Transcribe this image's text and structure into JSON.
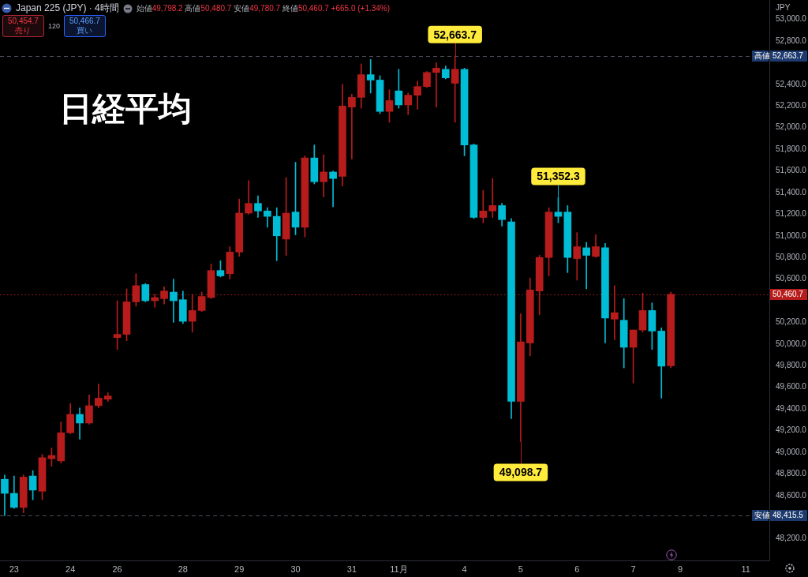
{
  "chart_data": {
    "type": "candlestick",
    "title": "日経平均",
    "subtitle": "Japan 225 (JPY) · 4時間",
    "ylabel": "JPY",
    "categories": [
      null,
      "23",
      null,
      null,
      null,
      null,
      null,
      "24",
      null,
      null,
      null,
      null,
      "26",
      null,
      null,
      null,
      null,
      null,
      null,
      "28",
      null,
      null,
      null,
      null,
      null,
      "29",
      null,
      null,
      null,
      null,
      null,
      "30",
      null,
      null,
      null,
      null,
      null,
      "31",
      null,
      null,
      null,
      null,
      "11月",
      null,
      null,
      null,
      null,
      null,
      null,
      "4",
      null,
      null,
      null,
      null,
      null,
      "5",
      null,
      null,
      null,
      null,
      null,
      "6",
      null,
      null,
      null,
      null,
      null,
      "7",
      null,
      null,
      null,
      null,
      "9",
      null,
      null,
      null,
      null,
      null,
      null,
      "11",
      null,
      null
    ],
    "ohlc": [
      [
        48750,
        48790,
        48415.5,
        48620
      ],
      [
        48620,
        48780,
        48480,
        48490
      ],
      [
        48490,
        48790,
        48440,
        48770
      ],
      [
        48780,
        48830,
        48560,
        48650
      ],
      [
        48640,
        48980,
        48560,
        48950
      ],
      [
        48940,
        49040,
        48870,
        48970
      ],
      [
        48920,
        49280,
        48900,
        49180
      ],
      [
        49180,
        49450,
        49170,
        49350
      ],
      [
        49350,
        49410,
        49120,
        49270
      ],
      [
        49270,
        49530,
        49260,
        49430
      ],
      [
        49430,
        49630,
        49410,
        49500
      ],
      [
        49490,
        49550,
        49470,
        49520
      ],
      [
        50060,
        50400,
        49950,
        50090
      ],
      [
        50090,
        50510,
        50030,
        50390
      ],
      [
        50390,
        50650,
        50350,
        50540
      ],
      [
        50550,
        50560,
        50390,
        50400
      ],
      [
        50400,
        50460,
        50340,
        50430
      ],
      [
        50420,
        50530,
        50370,
        50490
      ],
      [
        50480,
        50600,
        50200,
        50400
      ],
      [
        50410,
        50490,
        50190,
        50210
      ],
      [
        50210,
        50460,
        50110,
        50310
      ],
      [
        50310,
        50480,
        50300,
        50440
      ],
      [
        50430,
        50740,
        50420,
        50680
      ],
      [
        50680,
        50770,
        50620,
        50630
      ],
      [
        50650,
        50900,
        50600,
        50850
      ],
      [
        50850,
        51340,
        50810,
        51210
      ],
      [
        51210,
        51510,
        51200,
        51300
      ],
      [
        51300,
        51370,
        51170,
        51230
      ],
      [
        51230,
        51260,
        51080,
        51180
      ],
      [
        51180,
        51260,
        50770,
        51000
      ],
      [
        50970,
        51540,
        50820,
        51210
      ],
      [
        51220,
        51680,
        51010,
        51080
      ],
      [
        51080,
        51740,
        50990,
        51720
      ],
      [
        51720,
        51840,
        51480,
        51500
      ],
      [
        51500,
        51750,
        51360,
        51590
      ],
      [
        51590,
        51600,
        51270,
        51530
      ],
      [
        51550,
        52400,
        51460,
        52200
      ],
      [
        52190,
        52310,
        51710,
        52280
      ],
      [
        52280,
        52590,
        52180,
        52490
      ],
      [
        52490,
        52630,
        52320,
        52440
      ],
      [
        52440,
        52480,
        52130,
        52150
      ],
      [
        52150,
        52350,
        52050,
        52250
      ],
      [
        52340,
        52540,
        52180,
        52210
      ],
      [
        52210,
        52320,
        52120,
        52300
      ],
      [
        52300,
        52430,
        52170,
        52380
      ],
      [
        52380,
        52520,
        52370,
        52510
      ],
      [
        52510,
        52600,
        52190,
        52550
      ],
      [
        52540,
        52570,
        52450,
        52460
      ],
      [
        52410,
        52663.7,
        52050,
        52540
      ],
      [
        52540,
        52550,
        51740,
        51840
      ],
      [
        51840,
        51850,
        51160,
        51170
      ],
      [
        51170,
        51420,
        51120,
        51230
      ],
      [
        51230,
        51530,
        51170,
        51280
      ],
      [
        51280,
        51300,
        51090,
        51150
      ],
      [
        51130,
        51160,
        49310,
        49470
      ],
      [
        49470,
        50280,
        49098.7,
        50020
      ],
      [
        50010,
        50610,
        49890,
        50500
      ],
      [
        50490,
        50820,
        50270,
        50800
      ],
      [
        50800,
        51260,
        50630,
        51220
      ],
      [
        51220,
        51352.3,
        51120,
        51180
      ],
      [
        51220,
        51280,
        50660,
        50800
      ],
      [
        50790,
        51030,
        50590,
        50900
      ],
      [
        50890,
        50940,
        50510,
        50820
      ],
      [
        50810,
        51010,
        50800,
        50900
      ],
      [
        50890,
        50930,
        50010,
        50240
      ],
      [
        50230,
        50540,
        50040,
        50290
      ],
      [
        50220,
        50420,
        49780,
        49970
      ],
      [
        49970,
        50130,
        49640,
        50130
      ],
      [
        50130,
        50470,
        50110,
        50310
      ],
      [
        50310,
        50380,
        49950,
        50120
      ],
      [
        50120,
        50150,
        49500,
        49795.7
      ],
      [
        49798.2,
        50480.7,
        49780.7,
        50460.7
      ],
      null,
      null,
      null,
      null,
      null,
      null,
      null,
      null,
      null,
      null
    ],
    "colors": [
      "#00bcd4",
      "#00bcd4",
      "#b71c1c",
      "#00bcd4",
      "#b71c1c",
      "#b71c1c",
      "#b71c1c",
      "#b71c1c",
      "#00bcd4",
      "#b71c1c",
      "#b71c1c",
      "#b71c1c",
      "#b71c1c",
      "#b71c1c",
      "#b71c1c",
      "#00bcd4",
      "#b71c1c",
      "#b71c1c",
      "#00bcd4",
      "#00bcd4",
      "#b71c1c",
      "#b71c1c",
      "#b71c1c",
      "#00bcd4",
      "#b71c1c",
      "#b71c1c",
      "#b71c1c",
      "#00bcd4",
      "#00bcd4",
      "#00bcd4",
      "#b71c1c",
      "#00bcd4",
      "#b71c1c",
      "#00bcd4",
      "#b71c1c",
      "#00bcd4",
      "#b71c1c",
      "#b71c1c",
      "#b71c1c",
      "#00bcd4",
      "#00bcd4",
      "#b71c1c",
      "#00bcd4",
      "#b71c1c",
      "#b71c1c",
      "#b71c1c",
      "#b71c1c",
      "#00bcd4",
      "#b71c1c",
      "#00bcd4",
      "#00bcd4",
      "#b71c1c",
      "#b71c1c",
      "#00bcd4",
      "#00bcd4",
      "#b71c1c",
      "#b71c1c",
      "#b71c1c",
      "#b71c1c",
      "#00bcd4",
      "#00bcd4",
      "#b71c1c",
      "#00bcd4",
      "#b71c1c",
      "#00bcd4",
      "#b71c1c",
      "#00bcd4",
      "#b71c1c",
      "#b71c1c",
      "#00bcd4",
      "#00bcd4",
      "#b71c1c",
      null,
      null,
      null,
      null,
      null,
      null,
      null,
      null,
      null,
      null
    ],
    "value_labels": [
      null,
      null,
      null,
      null,
      null,
      null,
      null,
      null,
      null,
      null,
      null,
      null,
      null,
      null,
      null,
      null,
      null,
      null,
      null,
      null,
      null,
      null,
      null,
      null,
      null,
      null,
      null,
      null,
      null,
      null,
      null,
      null,
      null,
      null,
      null,
      null,
      null,
      null,
      null,
      null,
      null,
      null,
      null,
      null,
      null,
      null,
      null,
      null,
      "52,663.7",
      null,
      null,
      null,
      null,
      null,
      null,
      "49,098.7",
      null,
      null,
      null,
      "51,352.3",
      null,
      null,
      null,
      null,
      null,
      null,
      null,
      null,
      null,
      null,
      null,
      null,
      null,
      null,
      null,
      null,
      null,
      null,
      null,
      null,
      null,
      null
    ],
    "ylim": [
      48000,
      53180
    ],
    "yticks": [
      {
        "value": 48200,
        "label": "48,200.0"
      },
      {
        "value": 48600,
        "label": "48,600.0"
      },
      {
        "value": 48800,
        "label": "48,800.0"
      },
      {
        "value": 49000,
        "label": "49,000.0"
      },
      {
        "value": 49200,
        "label": "49,200.0"
      },
      {
        "value": 49400,
        "label": "49,400.0"
      },
      {
        "value": 49600,
        "label": "49,600.0"
      },
      {
        "value": 49800,
        "label": "49,800.0"
      },
      {
        "value": 50000,
        "label": "50,000.0"
      },
      {
        "value": 50200,
        "label": "50,200.0"
      },
      {
        "value": 50600,
        "label": "50,600.0"
      },
      {
        "value": 50800,
        "label": "50,800.0"
      },
      {
        "value": 51000,
        "label": "51,000.0"
      },
      {
        "value": 51200,
        "label": "51,200.0"
      },
      {
        "value": 51400,
        "label": "51,400.0"
      },
      {
        "value": 51600,
        "label": "51,600.0"
      },
      {
        "value": 51800,
        "label": "51,800.0"
      },
      {
        "value": 52000,
        "label": "52,000.0"
      },
      {
        "value": 52200,
        "label": "52,200.0"
      },
      {
        "value": 52400,
        "label": "52,400.0"
      },
      {
        "value": 52800,
        "label": "52,800.0"
      },
      {
        "value": 53000,
        "label": "53,000.0"
      }
    ],
    "ref_lines": [
      {
        "axis": "y",
        "value": 52663.7,
        "label": "高値 52,663.7",
        "color": "#4a4e5a",
        "line_style": "dashed"
      },
      {
        "axis": "y",
        "value": 48415.5,
        "label": "安値 48,415.5",
        "color": "#4a4e5a",
        "line_style": "dashed"
      },
      {
        "axis": "y",
        "value": 50460.7,
        "label": "50,460.7",
        "color": "#b71c1c",
        "line_style": "dotted"
      }
    ],
    "annotations": [
      "始値49,798.2 高値50,480.7 安値49,780.7 終値50,460.7 +665.0 (+1.34%)",
      "50,454.7",
      "売り",
      "120",
      "50,466.7",
      "買い"
    ]
  }
}
